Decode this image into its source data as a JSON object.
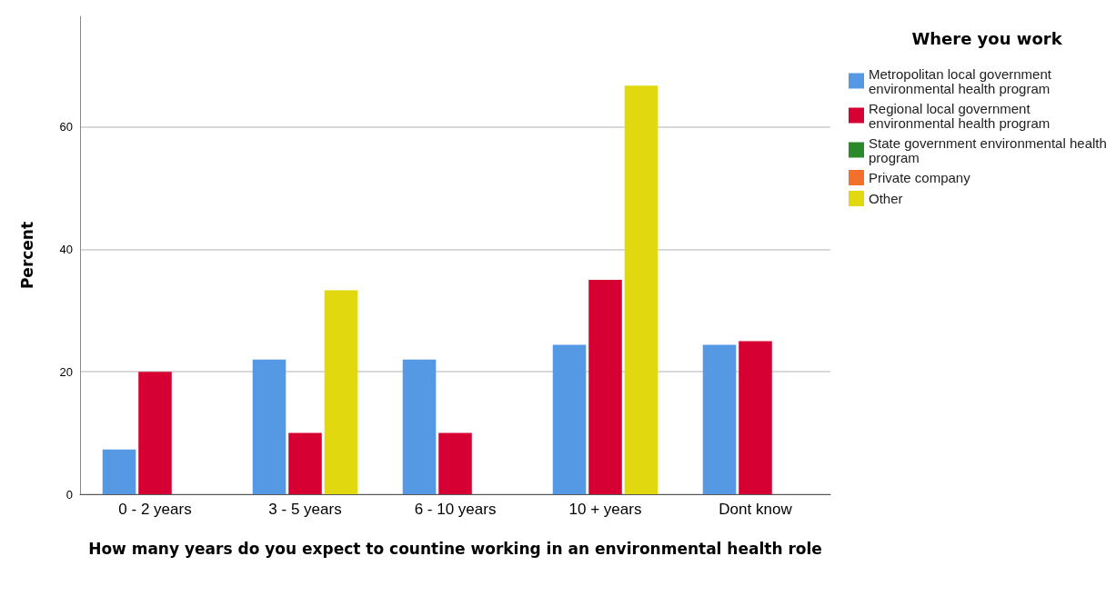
{
  "chart_data": {
    "type": "bar",
    "xlabel": "How many years do you expect to countine working in an environmental health role",
    "ylabel": "Percent",
    "legend_title": "Where you work",
    "categories": [
      "0 - 2 years",
      "3 - 5 years",
      "6 - 10 years",
      "10 + years",
      "Dont know"
    ],
    "series": [
      {
        "name": "Metropolitan local government environmental health program",
        "color": "#5599e4",
        "values": [
          7.3,
          22,
          22,
          24.4,
          24.4
        ]
      },
      {
        "name": "Regional local government environmental health program",
        "color": "#d60032",
        "values": [
          20,
          10,
          10,
          35,
          25
        ]
      },
      {
        "name": "State government environmental health program",
        "color": "#2a8a2a",
        "values": [
          null,
          null,
          null,
          null,
          null
        ]
      },
      {
        "name": "Private company",
        "color": "#f26f2c",
        "values": [
          null,
          null,
          null,
          null,
          null
        ]
      },
      {
        "name": "Other",
        "color": "#e2d80f",
        "values": [
          null,
          33.3,
          null,
          66.7,
          null
        ]
      }
    ],
    "ylim": [
      0,
      78
    ],
    "yticks": [
      0,
      20,
      40,
      60
    ],
    "grid": "y",
    "legend": "right"
  }
}
